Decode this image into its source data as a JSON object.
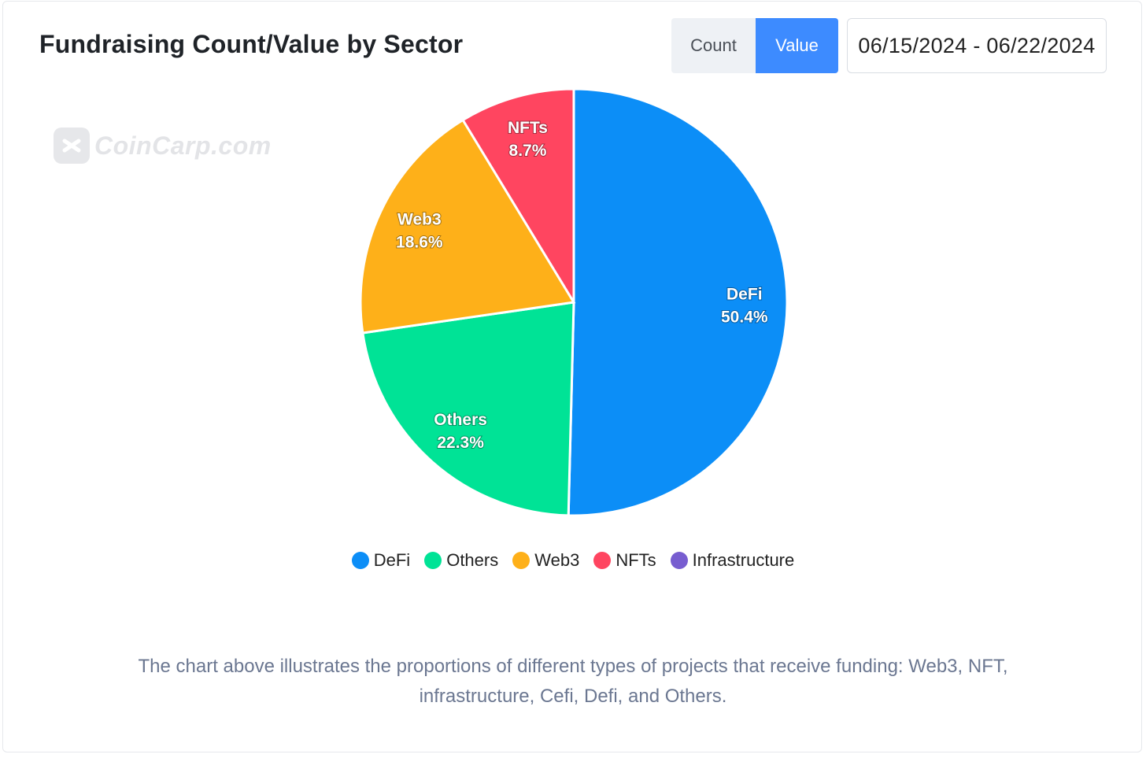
{
  "header": {
    "title": "Fundraising Count/Value by Sector",
    "toggle": {
      "count_label": "Count",
      "value_label": "Value",
      "selected": "Value"
    },
    "date_range": "06/15/2024 - 06/22/2024"
  },
  "watermark": {
    "text": "CoinCarp.com",
    "icon": "coincarp-logo-icon"
  },
  "chart_data": {
    "type": "pie",
    "title": "Fundraising Count/Value by Sector",
    "slices": [
      {
        "name": "DeFi",
        "value": 50.4,
        "label": "50.4%",
        "color": "#0c8ef7"
      },
      {
        "name": "Others",
        "value": 22.3,
        "label": "22.3%",
        "color": "#00e396"
      },
      {
        "name": "Web3",
        "value": 18.6,
        "label": "18.6%",
        "color": "#feb019"
      },
      {
        "name": "NFTs",
        "value": 8.7,
        "label": "8.7%",
        "color": "#ff4560"
      },
      {
        "name": "Infrastructure",
        "value": 0,
        "label": "",
        "color": "#775dd0"
      }
    ],
    "legend": [
      "DeFi",
      "Others",
      "Web3",
      "NFTs",
      "Infrastructure"
    ],
    "legend_position": "bottom-center"
  },
  "caption": "The chart above illustrates the proportions of different types of projects that receive funding: Web3, NFT, infrastructure, Cefi, Defi, and Others."
}
